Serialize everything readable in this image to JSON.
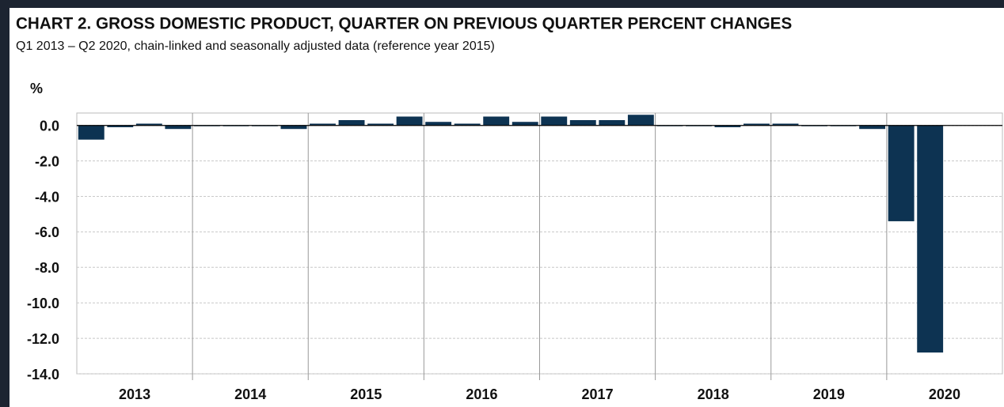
{
  "chart_data": {
    "type": "bar",
    "title": "CHART 2. GROSS DOMESTIC PRODUCT, QUARTER ON PREVIOUS QUARTER PERCENT CHANGES",
    "subtitle": "Q1 2013 – Q2 2020, chain-linked and seasonally adjusted data (reference year 2015)",
    "y_label": "%",
    "x_groups": [
      "2013",
      "2014",
      "2015",
      "2016",
      "2017",
      "2018",
      "2019",
      "2020"
    ],
    "categories": [
      null,
      null,
      null,
      null,
      null,
      null,
      null,
      null,
      null,
      null,
      null,
      null,
      null,
      null,
      null,
      null,
      null,
      null,
      null,
      null,
      null,
      null,
      null,
      null,
      null,
      null,
      null,
      null,
      null,
      null
    ],
    "values": [
      -0.8,
      -0.1,
      0.1,
      -0.2,
      0.0,
      0.0,
      0.0,
      -0.2,
      0.1,
      0.3,
      0.1,
      0.5,
      0.2,
      0.1,
      0.5,
      0.2,
      0.5,
      0.3,
      0.3,
      0.6,
      0.0,
      0.0,
      -0.1,
      0.1,
      0.1,
      0.0,
      0.0,
      -0.2,
      -5.4,
      -12.8
    ],
    "color": "#0d3352",
    "ylim": [
      -14,
      0.7
    ],
    "yticks": [
      {
        "value": 0,
        "label": "0.0"
      },
      {
        "value": -2,
        "label": "-2.0"
      },
      {
        "value": -4,
        "label": "-4.0"
      },
      {
        "value": -6,
        "label": "-6.0"
      },
      {
        "value": -8,
        "label": "-8.0"
      },
      {
        "value": -10,
        "label": "-10.0"
      },
      {
        "value": -12,
        "label": "-12.0"
      },
      {
        "value": -14,
        "label": "-14.0"
      }
    ],
    "grid": true
  }
}
